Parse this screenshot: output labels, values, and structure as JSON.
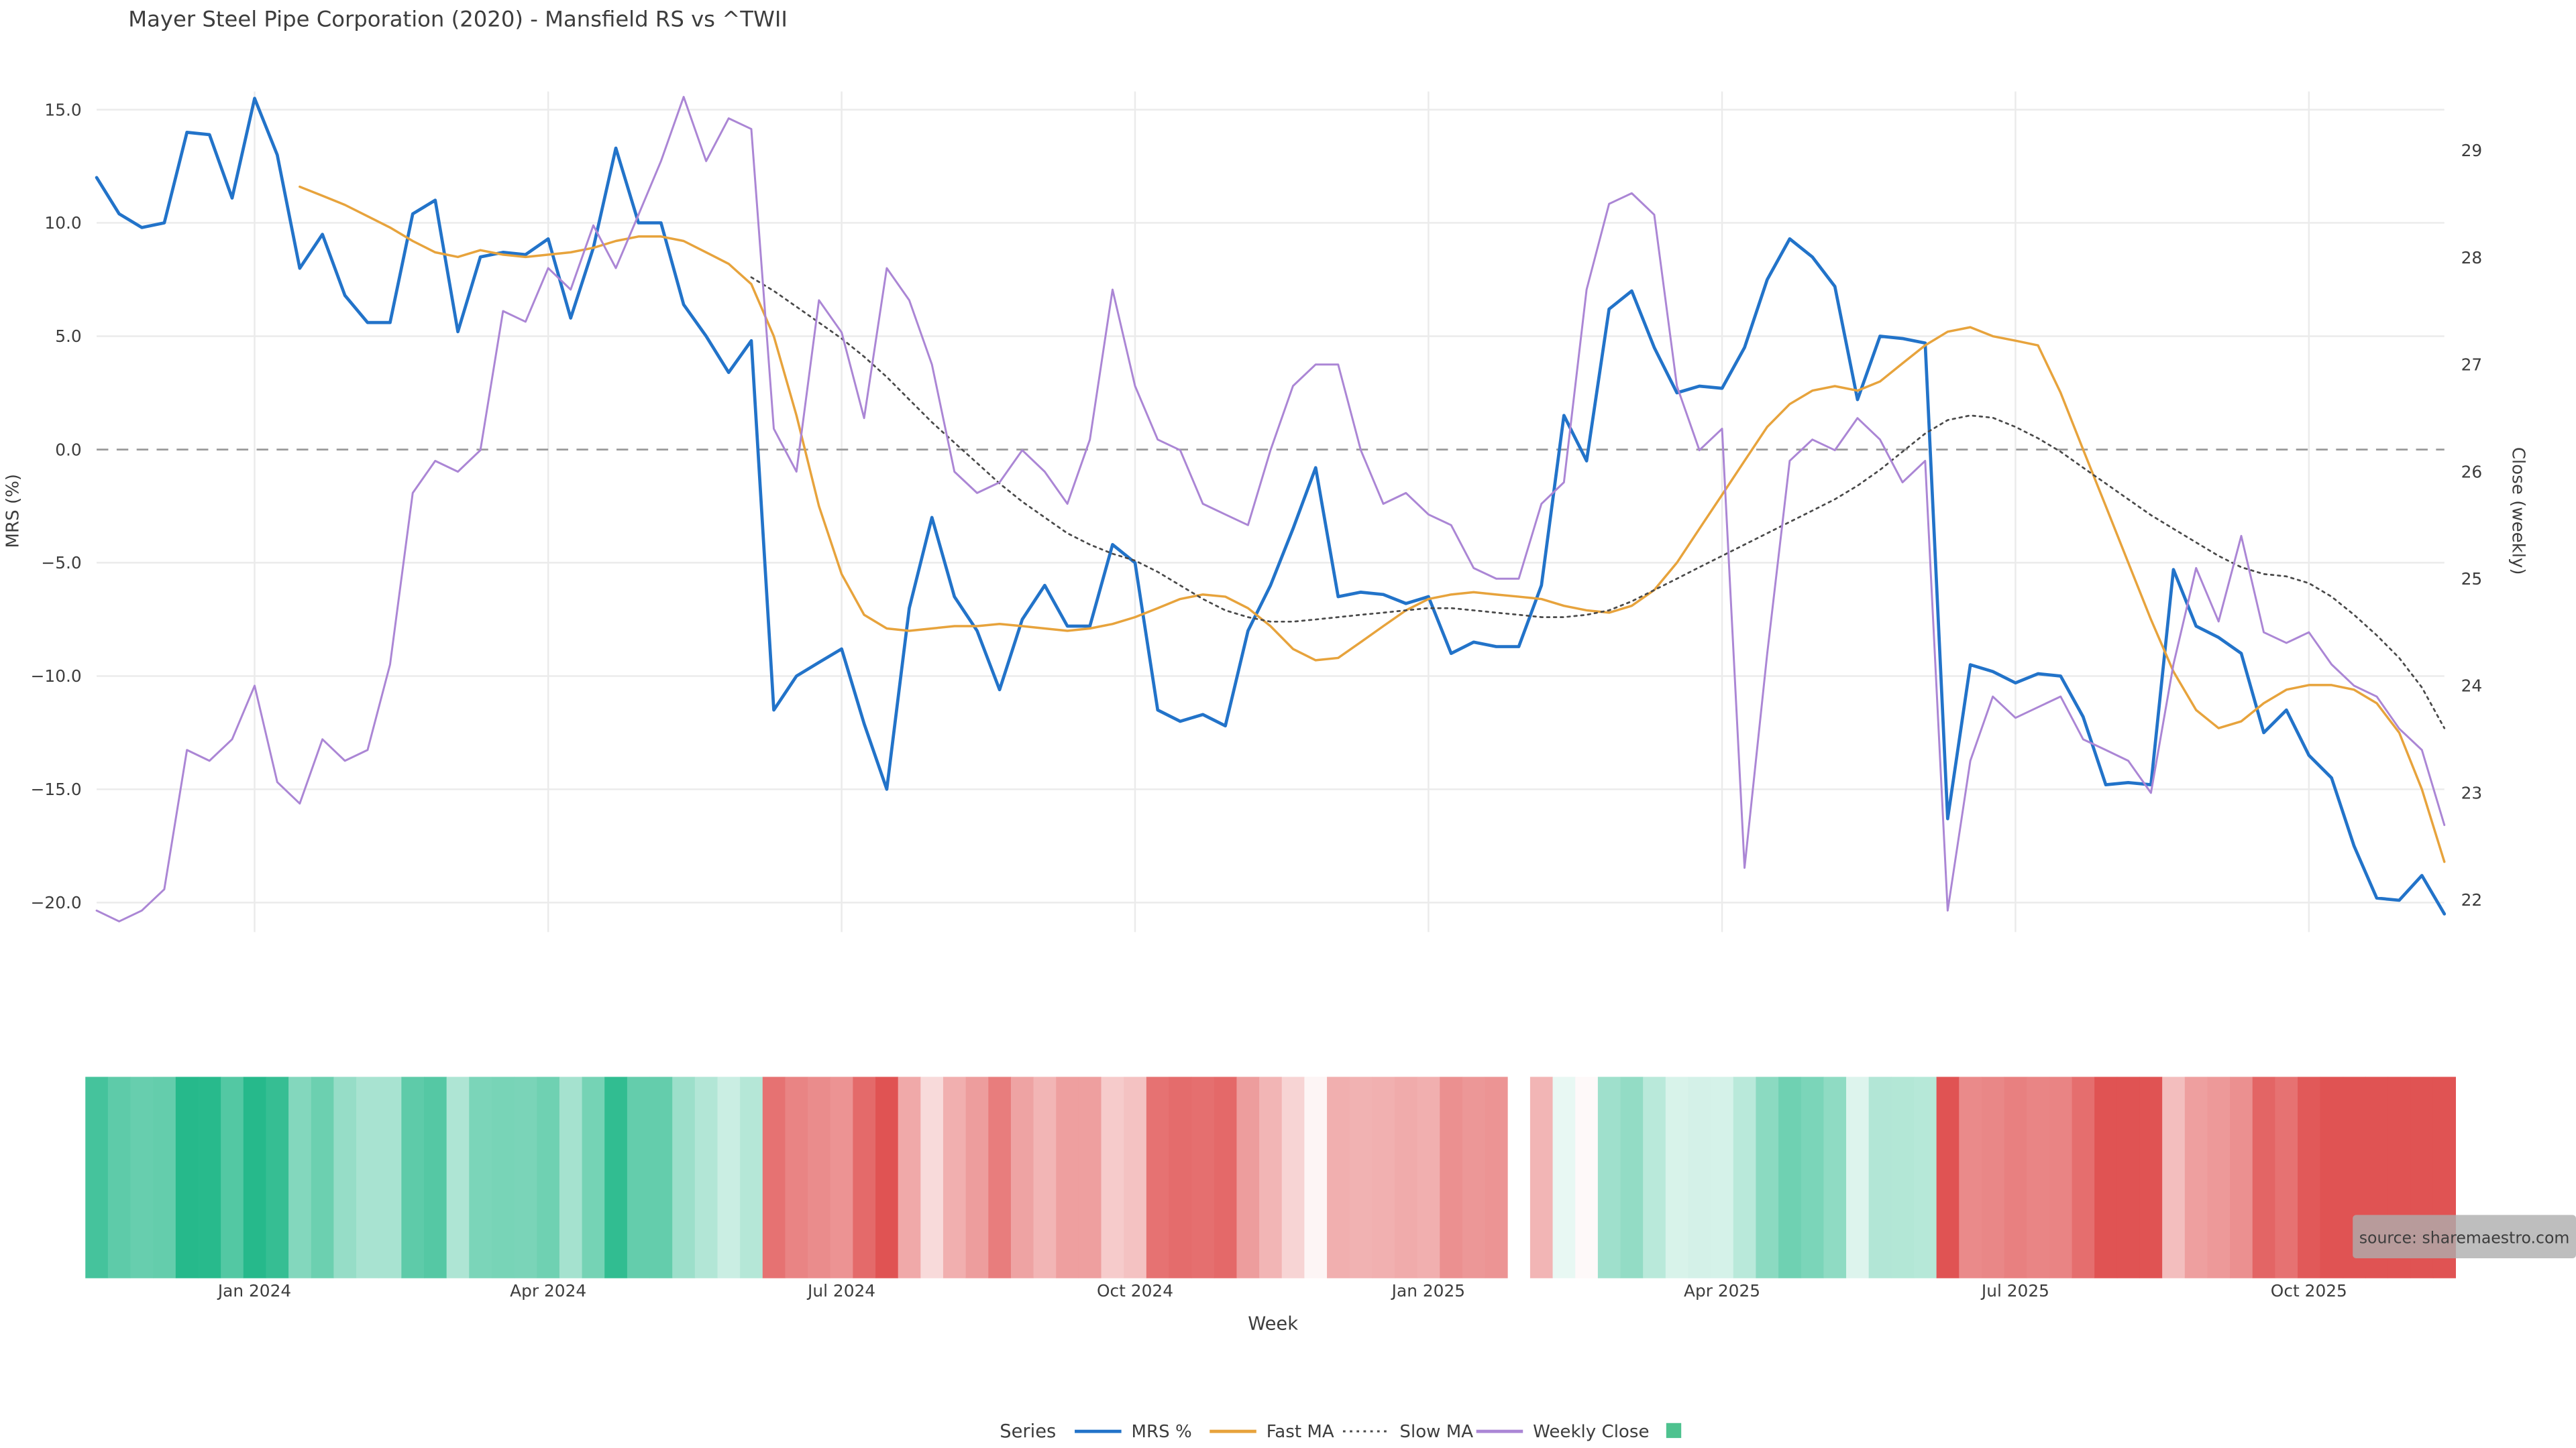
{
  "title": "Mayer Steel Pipe Corporation (2020) - Mansfield RS vs ^TWII",
  "source": "source: sharemaestro.com",
  "axes": {
    "left_label": "MRS (%)",
    "right_label": "Close (weekly)",
    "x_label": "Week",
    "left_ticks": [
      15.0,
      10.0,
      5.0,
      0.0,
      -5.0,
      -10.0,
      -15.0,
      -20.0
    ],
    "right_ticks": [
      29,
      28,
      27,
      26,
      25,
      24,
      23,
      22
    ],
    "x_ticks": [
      {
        "label": "Jan 2024",
        "week": 7
      },
      {
        "label": "Apr 2024",
        "week": 20
      },
      {
        "label": "Jul 2024",
        "week": 33
      },
      {
        "label": "Oct 2024",
        "week": 46
      },
      {
        "label": "Jan 2025",
        "week": 59
      },
      {
        "label": "Apr 2025",
        "week": 72
      },
      {
        "label": "Jul 2025",
        "week": 85
      },
      {
        "label": "Oct 2025",
        "week": 98
      }
    ]
  },
  "legend": {
    "title": "Series",
    "items": [
      {
        "label": "MRS %",
        "type": "line",
        "color": "#2273c9"
      },
      {
        "label": "Fast MA",
        "type": "line",
        "color": "#e7a33c"
      },
      {
        "label": "Slow MA",
        "type": "dotted",
        "color": "#4a4a4a"
      },
      {
        "label": "Weekly Close",
        "type": "line",
        "color": "#ab86d5"
      },
      {
        "label": "",
        "type": "square",
        "color": "#4ec28f"
      }
    ]
  },
  "colors": {
    "zero_line": "#9a9a9a",
    "gridline": "#ebebeb",
    "heatmap_positive": "#26b98b",
    "heatmap_negative": "#e05353"
  },
  "chart_data": {
    "type": "line",
    "x_axis": "Week (weekly samples, Nov 2023 - Nov 2025)",
    "left_range": [
      -21.3,
      15.8
    ],
    "right_range": [
      21.7,
      29.55
    ],
    "zero_reference_line": 0.0,
    "grid": true,
    "legend_position": "bottom-center",
    "heatmap": {
      "source": "MRS %",
      "gap_weeks": [
        63
      ],
      "description": "color strip below chart: green = positive MRS, red = negative MRS, intensity scales with magnitude"
    },
    "series": [
      {
        "name": "MRS %",
        "axis": "left",
        "style": "solid",
        "color": "#2273c9",
        "values": [
          12.0,
          10.4,
          9.8,
          10.0,
          14.0,
          13.9,
          11.1,
          15.5,
          13.0,
          8.0,
          9.5,
          6.8,
          5.6,
          5.6,
          10.4,
          11.0,
          5.2,
          8.5,
          8.7,
          8.6,
          9.3,
          5.8,
          8.9,
          13.3,
          10.0,
          10.0,
          6.4,
          5.0,
          3.4,
          4.8,
          -11.5,
          -10.0,
          -9.4,
          -8.8,
          -12.1,
          -15.0,
          -7.0,
          -3.0,
          -6.5,
          -8.0,
          -10.6,
          -7.5,
          -6.0,
          -7.8,
          -7.8,
          -4.2,
          -5.0,
          -11.5,
          -12.0,
          -11.7,
          -12.2,
          -8.0,
          -6.0,
          -3.5,
          -0.8,
          -6.5,
          -6.3,
          -6.4,
          -6.8,
          -6.5,
          -9.0,
          -8.5,
          -8.7,
          -8.7,
          -6.0,
          1.5,
          -0.5,
          6.2,
          7.0,
          4.5,
          2.5,
          2.8,
          2.7,
          4.5,
          7.5,
          9.3,
          8.5,
          7.2,
          2.2,
          5.0,
          4.9,
          4.7,
          -16.3,
          -9.5,
          -9.8,
          -10.3,
          -9.9,
          -10.0,
          -11.8,
          -14.8,
          -14.7,
          -14.8,
          -5.3,
          -7.8,
          -8.3,
          -9.0,
          -12.5,
          -11.5,
          -13.5,
          -14.5,
          -17.5,
          -19.8,
          -19.9,
          -18.8,
          -20.5
        ]
      },
      {
        "name": "Fast MA",
        "axis": "left",
        "style": "solid",
        "color": "#e7a33c",
        "values": [
          null,
          null,
          null,
          null,
          null,
          null,
          null,
          null,
          null,
          11.6,
          11.2,
          10.8,
          10.3,
          9.8,
          9.2,
          8.7,
          8.5,
          8.8,
          8.6,
          8.5,
          8.6,
          8.7,
          8.9,
          9.2,
          9.4,
          9.4,
          9.2,
          8.7,
          8.2,
          7.3,
          5.0,
          1.5,
          -2.5,
          -5.5,
          -7.3,
          -7.9,
          -8.0,
          -7.9,
          -7.8,
          -7.8,
          -7.7,
          -7.8,
          -7.9,
          -8.0,
          -7.9,
          -7.7,
          -7.4,
          -7.0,
          -6.6,
          -6.4,
          -6.5,
          -7.0,
          -7.8,
          -8.8,
          -9.3,
          -9.2,
          -8.5,
          -7.8,
          -7.1,
          -6.6,
          -6.4,
          -6.3,
          -6.4,
          -6.5,
          -6.6,
          -6.9,
          -7.1,
          -7.2,
          -6.9,
          -6.2,
          -5.0,
          -3.5,
          -2.0,
          -0.5,
          1.0,
          2.0,
          2.6,
          2.8,
          2.6,
          3.0,
          3.8,
          4.6,
          5.2,
          5.4,
          5.0,
          4.8,
          4.6,
          2.5,
          0.0,
          -2.5,
          -5.0,
          -7.5,
          -9.8,
          -11.5,
          -12.3,
          -12.0,
          -11.2,
          -10.6,
          -10.4,
          -10.4,
          -10.6,
          -11.2,
          -12.5,
          -15.0,
          -18.2
        ]
      },
      {
        "name": "Slow MA",
        "axis": "left",
        "style": "dotted",
        "color": "#4a4a4a",
        "values": [
          null,
          null,
          null,
          null,
          null,
          null,
          null,
          null,
          null,
          null,
          null,
          null,
          null,
          null,
          null,
          null,
          null,
          null,
          null,
          null,
          null,
          null,
          null,
          null,
          null,
          null,
          null,
          null,
          null,
          7.6,
          7.0,
          6.3,
          5.6,
          4.9,
          4.1,
          3.2,
          2.2,
          1.2,
          0.3,
          -0.6,
          -1.5,
          -2.3,
          -3.0,
          -3.7,
          -4.2,
          -4.6,
          -4.9,
          -5.4,
          -6.0,
          -6.6,
          -7.1,
          -7.4,
          -7.6,
          -7.6,
          -7.5,
          -7.4,
          -7.3,
          -7.2,
          -7.1,
          -7.0,
          -7.0,
          -7.1,
          -7.2,
          -7.3,
          -7.4,
          -7.4,
          -7.3,
          -7.1,
          -6.7,
          -6.2,
          -5.7,
          -5.2,
          -4.7,
          -4.2,
          -3.7,
          -3.2,
          -2.7,
          -2.2,
          -1.6,
          -0.9,
          -0.1,
          0.7,
          1.3,
          1.5,
          1.4,
          1.0,
          0.5,
          -0.1,
          -0.8,
          -1.5,
          -2.2,
          -2.9,
          -3.5,
          -4.1,
          -4.7,
          -5.2,
          -5.5,
          -5.6,
          -5.9,
          -6.5,
          -7.3,
          -8.2,
          -9.2,
          -10.5,
          -12.3
        ]
      },
      {
        "name": "Weekly Close",
        "axis": "right",
        "style": "solid",
        "color": "#ab86d5",
        "values": [
          21.9,
          21.8,
          21.9,
          22.1,
          23.4,
          23.3,
          23.5,
          24.0,
          23.1,
          22.9,
          23.5,
          23.3,
          23.4,
          24.2,
          25.8,
          26.1,
          26.0,
          26.2,
          27.5,
          27.4,
          27.9,
          27.7,
          28.3,
          27.9,
          28.4,
          28.9,
          29.5,
          28.9,
          29.3,
          29.2,
          26.4,
          26.0,
          27.6,
          27.3,
          26.5,
          27.9,
          27.6,
          27.0,
          26.0,
          25.8,
          25.9,
          26.2,
          26.0,
          25.7,
          26.3,
          27.7,
          26.8,
          26.3,
          26.2,
          25.7,
          25.6,
          25.5,
          26.2,
          26.8,
          27.0,
          27.0,
          26.2,
          25.7,
          25.8,
          25.6,
          25.5,
          25.1,
          25.0,
          25.0,
          25.7,
          25.9,
          27.7,
          28.5,
          28.6,
          28.4,
          26.8,
          26.2,
          26.4,
          22.3,
          24.3,
          26.1,
          26.3,
          26.2,
          26.5,
          26.3,
          25.9,
          26.1,
          21.9,
          23.3,
          23.9,
          23.7,
          23.8,
          23.9,
          23.5,
          23.4,
          23.3,
          23.0,
          24.2,
          25.1,
          24.6,
          25.4,
          24.5,
          24.4,
          24.5,
          24.2,
          24.0,
          23.9,
          23.6,
          23.4,
          22.7
        ]
      }
    ]
  }
}
